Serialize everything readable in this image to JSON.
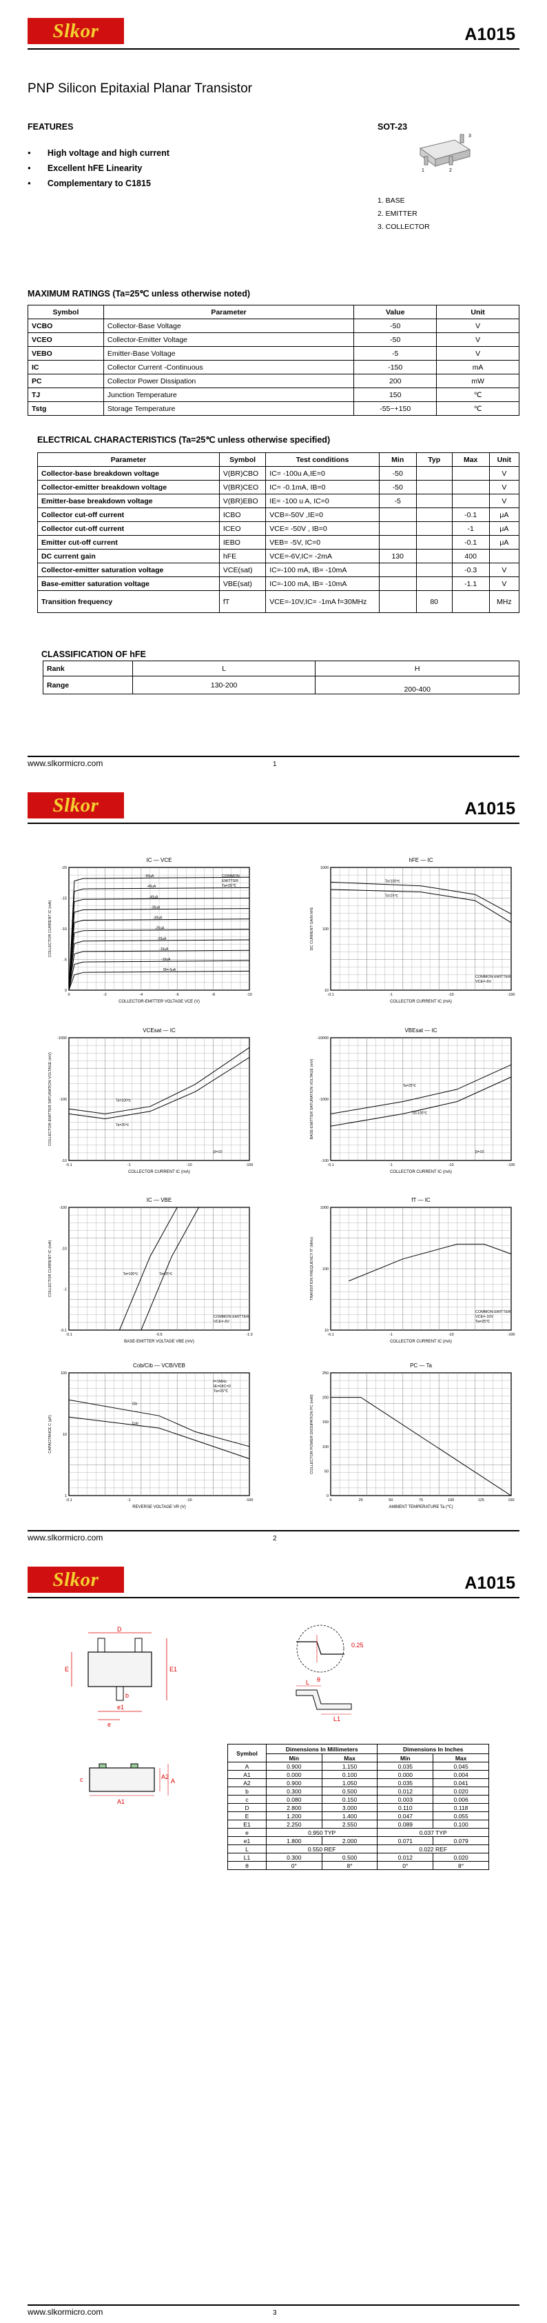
{
  "header": {
    "brand": "Slkor",
    "part": "A1015"
  },
  "footer": {
    "url": "www.slkormicro.com",
    "pages": [
      "1",
      "2",
      "3"
    ]
  },
  "title": "PNP Silicon Epitaxial Planar Transistor",
  "features": {
    "heading": "FEATURES",
    "items": [
      "High voltage and high current",
      "Excellent   hFE  Linearity",
      "Complementary to C1815"
    ]
  },
  "package": {
    "name": "SOT-23",
    "pins": [
      "1. BASE",
      "2. EMITTER",
      "3. COLLECTOR"
    ]
  },
  "max_ratings": {
    "heading": "MAXIMUM RATINGS (Ta=25℃ unless otherwise noted)",
    "headers": [
      "Symbol",
      "Parameter",
      "Value",
      "Unit"
    ],
    "rows": [
      [
        "VCBO",
        "Collector-Base Voltage",
        "-50",
        "V"
      ],
      [
        "VCEO",
        "Collector-Emitter Voltage",
        "-50",
        "V"
      ],
      [
        "VEBO",
        "Emitter-Base Voltage",
        "-5",
        "V"
      ],
      [
        "IC",
        "Collector Current -Continuous",
        "-150",
        "mA"
      ],
      [
        "PC",
        "Collector Power Dissipation",
        "200",
        "mW"
      ],
      [
        "TJ",
        "Junction Temperature",
        "150",
        "℃"
      ],
      [
        "Tstg",
        "Storage Temperature",
        "-55~+150",
        "℃"
      ]
    ]
  },
  "elec": {
    "heading": "ELECTRICAL CHARACTERISTICS (Ta=25℃ unless otherwise specified)",
    "headers": [
      "Parameter",
      "Symbol",
      "Test conditions",
      "Min",
      "Typ",
      "Max",
      "Unit"
    ],
    "rows": [
      [
        "Collector-base breakdown voltage",
        "V(BR)CBO",
        "IC= -100u A,IE=0",
        "-50",
        "",
        "",
        "V"
      ],
      [
        "Collector-emitter breakdown voltage",
        "V(BR)CEO",
        "IC= -0.1mA, IB=0",
        "-50",
        "",
        "",
        "V"
      ],
      [
        "Emitter-base breakdown voltage",
        "V(BR)EBO",
        "IE= -100 u A, IC=0",
        "-5",
        "",
        "",
        "V"
      ],
      [
        "Collector cut-off current",
        "ICBO",
        "VCB=-50V ,IE=0",
        "",
        "",
        "-0.1",
        "μA"
      ],
      [
        "Collector cut-off current",
        "ICEO",
        "VCE= -50V , IB=0",
        "",
        "",
        "-1",
        "μA"
      ],
      [
        "Emitter cut-off current",
        "IEBO",
        "VEB= -5V, IC=0",
        "",
        "",
        "-0.1",
        "μA"
      ],
      [
        "DC current gain",
        "hFE",
        "VCE=-6V,IC= -2mA",
        "130",
        "",
        "400",
        ""
      ],
      [
        "Collector-emitter saturation voltage",
        "VCE(sat)",
        "IC=-100 mA, IB= -10mA",
        "",
        "",
        "-0.3",
        "V"
      ],
      [
        "Base-emitter saturation voltage",
        "VBE(sat)",
        "IC=-100 mA, IB= -10mA",
        "",
        "",
        "-1.1",
        "V"
      ],
      [
        "Transition frequency",
        "fT",
        "VCE=-10V,IC= -1mA  f=30MHz",
        "",
        "80",
        "",
        "MHz"
      ]
    ]
  },
  "classification": {
    "heading": "CLASSIFICATION OF  hFE",
    "rows": [
      [
        "Rank",
        "L",
        "H"
      ],
      [
        "Range",
        "130-200",
        "200-400"
      ]
    ]
  },
  "graphs": {
    "g1": {
      "title": "IC  —  VCE",
      "ylabel": "COLLECTOR CURRENT   IC   (mA)",
      "xlabel": "COLLECTOR-EMITTER VOLTAGE   VCE (V)",
      "note": "COMMON\nEMITTER\nTa=25℃",
      "xticks": [
        "0",
        "-2",
        "-4",
        "-6",
        "-8",
        "-10"
      ],
      "yticks": [
        "-20",
        "-15",
        "-10",
        "-5",
        "0"
      ],
      "curves": [
        "-50uA",
        "-45uA",
        "-40uA",
        "-35uA",
        "-30uA",
        "-25uA",
        "-20uA",
        "-15uA",
        "-10uA",
        "IB=-5uA"
      ]
    },
    "g2": {
      "title": "hFE  —  IC",
      "ylabel": "DC CURRENT GAIN   hFE",
      "xlabel": "COLLECTOR CURRENT   IC   (mA)",
      "note": "COMMON EMITTER\nVCE=-6V",
      "xticks": [
        "-0.1",
        "-1",
        "-10",
        "-100"
      ],
      "yticks": [
        "1000",
        "100",
        "10"
      ],
      "curves": [
        "Ta=100℃",
        "Ta=25℃"
      ]
    },
    "g3": {
      "title": "VCEsat  —  IC",
      "ylabel": "COLLECTOR-EMITTER SATURATION VOLTAGE   (mV)",
      "xlabel": "COLLECTOR CURRENT   IC   (mA)",
      "note": "β=10",
      "xticks": [
        "-0.1",
        "-1",
        "-10",
        "-100"
      ],
      "yticks": [
        "-1000",
        "-100",
        "-10"
      ],
      "curves": [
        "Ta=100℃",
        "Ta=25℃"
      ]
    },
    "g4": {
      "title": "VBEsat  —  IC",
      "ylabel": "BASE-EMITTER SATURATION VOLTAGE   (mV)",
      "xlabel": "COLLECTOR CURRENT   IC   (mA)",
      "note": "β=10",
      "xticks": [
        "-0.1",
        "-1",
        "-10",
        "-100"
      ],
      "yticks": [
        "-10000",
        "-1000",
        "-100"
      ],
      "curves": [
        "Ta=25℃",
        "Ta=100℃"
      ]
    },
    "g5": {
      "title": "IC  —  VBE",
      "ylabel": "COLLECTOR CURRENT   IC   (mA)",
      "xlabel": "BASE-EMITTER VOLTAGE   VBE (mV)",
      "note": "COMMON EMITTER\nVCE=-6V",
      "xticks": [
        "-0.1",
        "-0.5",
        "-1.0"
      ],
      "yticks": [
        "-100",
        "-10",
        "-1",
        "-0.1"
      ],
      "curves": [
        "Ta=100℃",
        "Ta=25℃"
      ]
    },
    "g6": {
      "title": "fT  —  IC",
      "ylabel": "TRANSITION FREQUENCY   fT   (MHz)",
      "xlabel": "COLLECTOR CURRENT   IC   (mA)",
      "note": "COMMON EMITTER\nVCE=-10V\nTa=25℃",
      "xticks": [
        "-0.1",
        "-1",
        "-10",
        "-100"
      ],
      "yticks": [
        "1000",
        "100",
        "10"
      ]
    },
    "g7": {
      "title": "Cob/Cib  —  VCB/VEB",
      "ylabel": "CAPACITANCE   C  (pF)",
      "xlabel": "REVERSE  VOLTAGE   VR (V)",
      "note": "f=1MHz\nIE=0/IC=0\nTa=25℃",
      "xticks": [
        "-0.1",
        "-1",
        "-10",
        "-100"
      ],
      "yticks": [
        "100",
        "10",
        "1"
      ],
      "curves": [
        "Cib",
        "Cob"
      ]
    },
    "g8": {
      "title": "PC  —  Ta",
      "ylabel": "COLLECTOR POWER DISSIPATION   PC  (mW)",
      "xlabel": "AMBIENT TEMPERATURE   Ta  (℃)",
      "xticks": [
        "0",
        "25",
        "50",
        "75",
        "100",
        "125",
        "150"
      ],
      "yticks": [
        "250",
        "200",
        "150",
        "100",
        "50",
        "0"
      ]
    }
  },
  "dims": {
    "headers": [
      "Symbol",
      "Dimensions In Millimeters",
      "Dimensions In Inches"
    ],
    "sub": [
      "Min",
      "Max",
      "Min",
      "Max"
    ],
    "rows": [
      [
        "A",
        "0.900",
        "1.150",
        "0.035",
        "0.045"
      ],
      [
        "A1",
        "0.000",
        "0.100",
        "0.000",
        "0.004"
      ],
      [
        "A2",
        "0.900",
        "1.050",
        "0.035",
        "0.041"
      ],
      [
        "b",
        "0.300",
        "0.500",
        "0.012",
        "0.020"
      ],
      [
        "c",
        "0.080",
        "0.150",
        "0.003",
        "0.006"
      ],
      [
        "D",
        "2.800",
        "3.000",
        "0.110",
        "0.118"
      ],
      [
        "E",
        "1.200",
        "1.400",
        "0.047",
        "0.055"
      ],
      [
        "E1",
        "2.250",
        "2.550",
        "0.089",
        "0.100"
      ],
      [
        "e",
        "0.950 TYP",
        "",
        "0.037 TYP",
        ""
      ],
      [
        "e1",
        "1.800",
        "2.000",
        "0.071",
        "0.079"
      ],
      [
        "L",
        "0.550 REF",
        "",
        "0.022 REF",
        ""
      ],
      [
        "L1",
        "0.300",
        "0.500",
        "0.012",
        "0.020"
      ],
      [
        "θ",
        "0°",
        "8°",
        "0°",
        "8°"
      ]
    ]
  },
  "drawing_labels": {
    "D": "D",
    "E": "E",
    "E1": "E1",
    "b": "b",
    "e": "e",
    "e1": "e1",
    "c": "c",
    "L": "L",
    "L1": "L1",
    "A": "A",
    "A1": "A1",
    "A2": "A2",
    "gauge": "0.25",
    "theta": "θ"
  }
}
